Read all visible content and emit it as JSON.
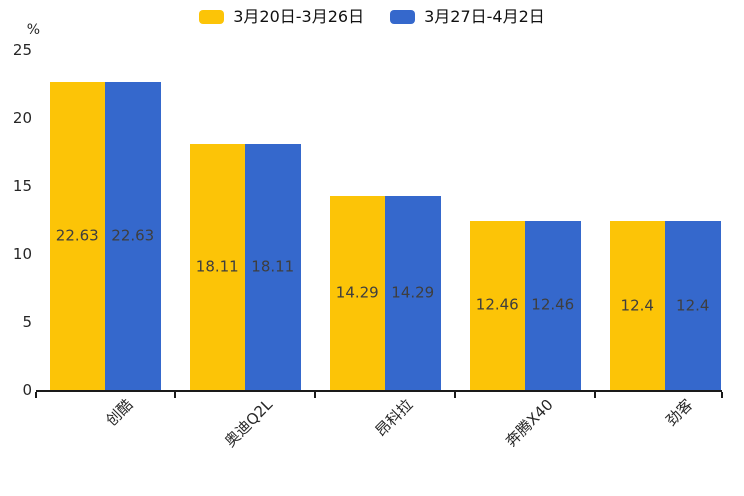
{
  "chart_data": {
    "type": "bar",
    "title": "",
    "unit_label": "%",
    "categories": [
      "创酷",
      "奥迪Q2L",
      "昂科拉",
      "奔腾X40",
      "劲客"
    ],
    "series": [
      {
        "name": "3月20日-3月26日",
        "color": "#FCC407",
        "values": [
          22.63,
          18.11,
          14.29,
          12.46,
          12.4
        ]
      },
      {
        "name": "3月27日-4月2日",
        "color": "#3568CC",
        "values": [
          22.63,
          18.11,
          14.29,
          12.46,
          12.4
        ]
      }
    ],
    "value_labels": [
      [
        "22.63",
        "18.11",
        "14.29",
        "12.46",
        "12.4"
      ],
      [
        "22.63",
        "18.11",
        "14.29",
        "12.46",
        "12.4"
      ]
    ],
    "y_ticks": [
      0,
      5,
      10,
      15,
      20,
      25
    ],
    "ylim": [
      0,
      25
    ],
    "grid": false,
    "legend_position": "top-center",
    "bar_label_position": "inside-center",
    "colors": {
      "axis": "#1a1a1a",
      "tick_text": "#262626",
      "bar_label_text": "#3E3E3E"
    }
  }
}
